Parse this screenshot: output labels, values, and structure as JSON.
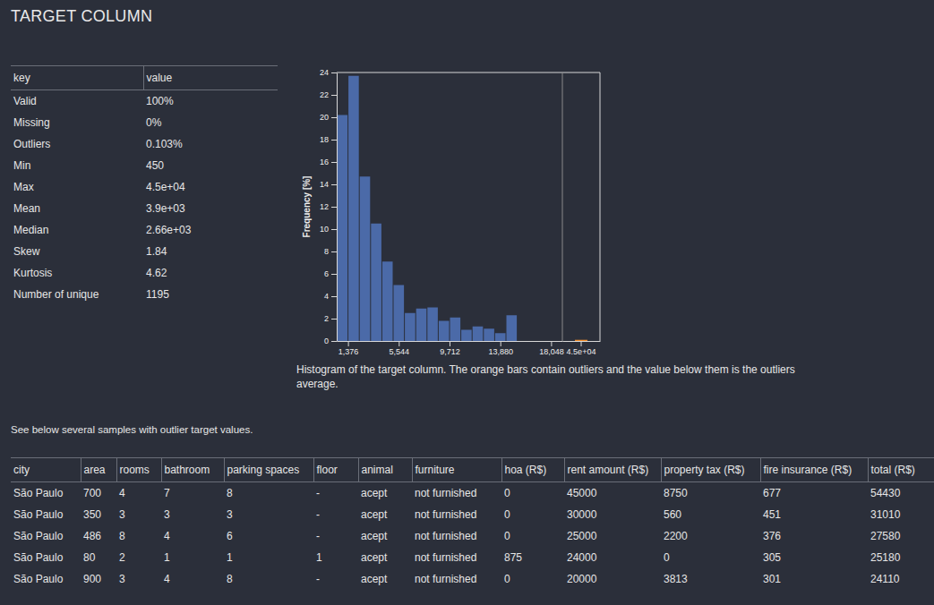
{
  "header": {
    "title": "TARGET COLUMN"
  },
  "stats": {
    "columns": [
      "key",
      "value"
    ],
    "rows": [
      [
        "Valid",
        "100%"
      ],
      [
        "Missing",
        "0%"
      ],
      [
        "Outliers",
        "0.103%"
      ],
      [
        "Min",
        "450"
      ],
      [
        "Max",
        "4.5e+04"
      ],
      [
        "Mean",
        "3.9e+03"
      ],
      [
        "Median",
        "2.66e+03"
      ],
      [
        "Skew",
        "1.84"
      ],
      [
        "Kurtosis",
        "4.62"
      ],
      [
        "Number of unique",
        "1195"
      ]
    ]
  },
  "chart_data": {
    "type": "histogram",
    "y_label": "Frequency [%]",
    "bins": [
      450,
      1376.2,
      2302.4,
      3228.6,
      4154.8,
      5081.1,
      6007.3,
      6933.5,
      7859.7,
      8785.9,
      9712.1,
      10638.3,
      11564.5,
      12490.7,
      13416.9,
      14343.2,
      15269.4,
      16195.6,
      17121.8,
      18048,
      18974.2
    ],
    "values": [
      20.2,
      23.7,
      14.7,
      10.5,
      7.1,
      5.0,
      2.5,
      2.9,
      3.0,
      1.8,
      2.1,
      1.0,
      1.3,
      1.1,
      0.7,
      2.3,
      0,
      0,
      0,
      0
    ],
    "color": "#4b6aa8",
    "xlim": [
      450,
      18974.2
    ],
    "xticks": [
      {
        "value": 1376,
        "label": "1,376"
      },
      {
        "value": 5544,
        "label": "5,544"
      },
      {
        "value": 9712,
        "label": "9,712"
      },
      {
        "value": 13880,
        "label": "13,880"
      },
      {
        "value": 18048,
        "label": "18,048"
      }
    ],
    "ylim": [
      0,
      24
    ],
    "yticks": [
      0,
      2,
      4,
      6,
      8,
      10,
      12,
      14,
      16,
      18,
      20,
      22,
      24
    ],
    "grid": false,
    "outliers": {
      "value": 45000,
      "label": "4.5e+04",
      "values": [
        0.103
      ],
      "color": "#f28e2b"
    }
  },
  "caption": "Histogram of the target column. The orange bars contain outliers and the value below them is the outliers average.",
  "samples_note": "See below several samples with outlier target values.",
  "table": {
    "columns": [
      "city",
      "area",
      "rooms",
      "bathroom",
      "parking spaces",
      "floor",
      "animal",
      "furniture",
      "hoa (R$)",
      "rent amount (R$)",
      "property tax (R$)",
      "fire insurance (R$)",
      "total (R$)"
    ],
    "rows": [
      [
        "São Paulo",
        "700",
        "4",
        "7",
        "8",
        "-",
        "acept",
        "not furnished",
        "0",
        "45000",
        "8750",
        "677",
        "54430"
      ],
      [
        "São Paulo",
        "350",
        "3",
        "3",
        "3",
        "-",
        "acept",
        "not furnished",
        "0",
        "30000",
        "560",
        "451",
        "31010"
      ],
      [
        "São Paulo",
        "486",
        "8",
        "4",
        "6",
        "-",
        "acept",
        "not furnished",
        "0",
        "25000",
        "2200",
        "376",
        "27580"
      ],
      [
        "São Paulo",
        "80",
        "2",
        "1",
        "1",
        "1",
        "acept",
        "not furnished",
        "875",
        "24000",
        "0",
        "305",
        "25180"
      ],
      [
        "São Paulo",
        "900",
        "3",
        "4",
        "8",
        "-",
        "acept",
        "not furnished",
        "0",
        "20000",
        "3813",
        "301",
        "24110"
      ]
    ]
  }
}
